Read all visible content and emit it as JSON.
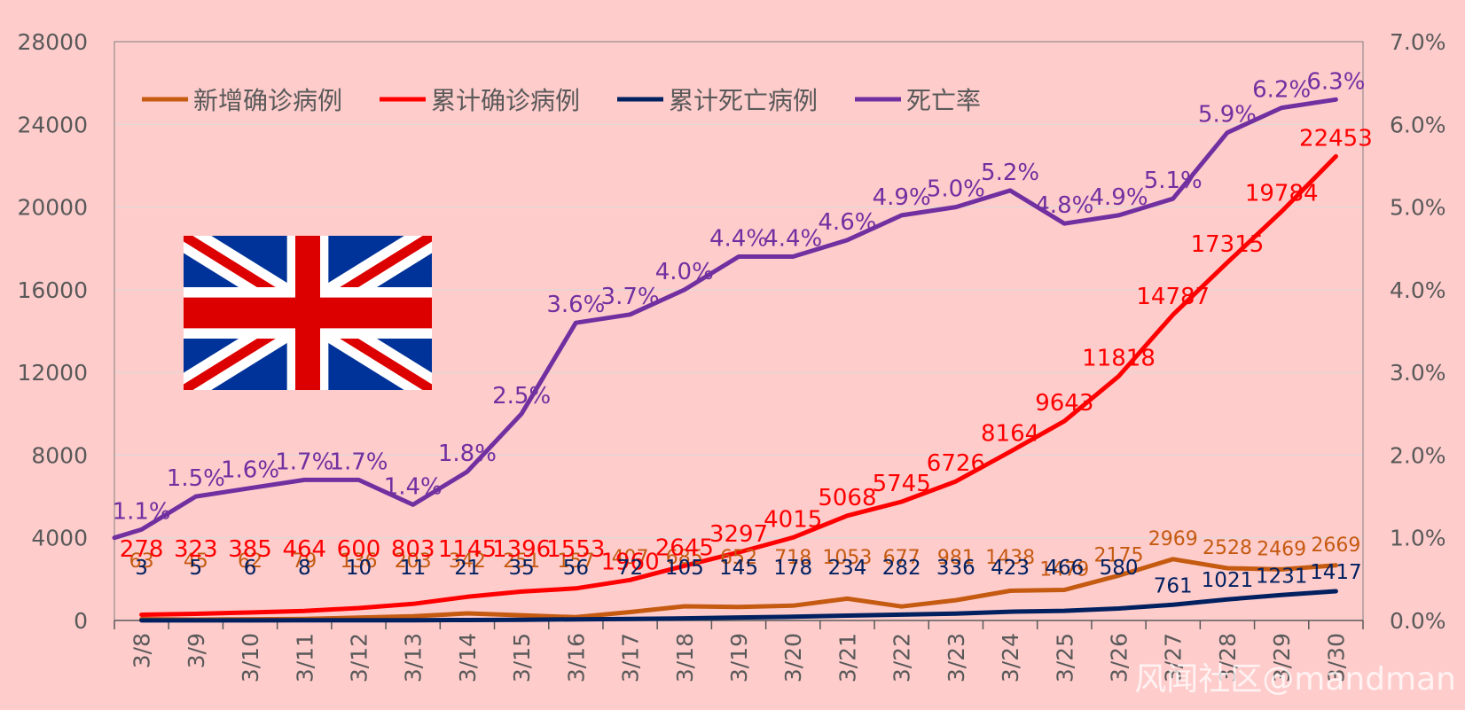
{
  "watermark": "风闻社区@mandman",
  "colors": {
    "background": "#ffcccc",
    "new_cases": "#c55a11",
    "cum_cases": "#ff0000",
    "cum_deaths": "#002060",
    "death_rate": "#7030a0",
    "axis_text": "#595959",
    "grid": "#d9d9d9"
  },
  "chart_data": {
    "type": "line",
    "title": "",
    "xlabel": "",
    "ylabel": "",
    "categories": [
      "3/8",
      "3/9",
      "3/10",
      "3/11",
      "3/12",
      "3/13",
      "3/14",
      "3/15",
      "3/16",
      "3/17",
      "3/18",
      "3/19",
      "3/20",
      "3/21",
      "3/22",
      "3/23",
      "3/24",
      "3/25",
      "3/26",
      "3/27",
      "3/28",
      "3/29",
      "3/30"
    ],
    "y_ticks": [
      "0",
      "4000",
      "8000",
      "12000",
      "16000",
      "20000",
      "24000",
      "28000"
    ],
    "y_ticks_right": [
      "0.0%",
      "1.0%",
      "2.0%",
      "3.0%",
      "4.0%",
      "5.0%",
      "6.0%",
      "7.0%"
    ],
    "ylim": [
      0,
      28000
    ],
    "ylim_right": [
      0,
      0.07
    ],
    "legend_position": "top-left inside plot",
    "grid": true,
    "series": [
      {
        "name": "新增确诊病例",
        "axis": "left",
        "color": "#c55a11",
        "values": [
          63,
          45,
          62,
          79,
          136,
          203,
          342,
          251,
          157,
          407,
          685,
          652,
          718,
          1053,
          677,
          981,
          1438,
          1479,
          2175,
          2969,
          2528,
          2469,
          2669
        ],
        "labels": [
          "63",
          "45",
          "62",
          "79",
          "136",
          "203",
          "342",
          "251",
          "157",
          "407",
          "685",
          "652",
          "718",
          "1053",
          "677",
          "981",
          "1438",
          "1479",
          "2175",
          "2969",
          "2528",
          "2469",
          "2669"
        ]
      },
      {
        "name": "累计确诊病例",
        "axis": "left",
        "color": "#ff0000",
        "values": [
          278,
          323,
          385,
          464,
          600,
          803,
          1145,
          1396,
          1553,
          1960,
          2645,
          3297,
          4015,
          5068,
          5745,
          6726,
          8164,
          9643,
          11818,
          14787,
          17315,
          19784,
          22453
        ],
        "labels": [
          "278",
          "323",
          "385",
          "464",
          "600",
          "803",
          "1145",
          "1396",
          "1553",
          "1960",
          "2645",
          "3297",
          "4015",
          "5068",
          "5745",
          "6726",
          "8164",
          "9643",
          "11818",
          "14787",
          "17315",
          "19784",
          "22453"
        ]
      },
      {
        "name": "累计死亡病例",
        "axis": "left",
        "color": "#002060",
        "values": [
          3,
          5,
          6,
          8,
          10,
          11,
          21,
          35,
          56,
          72,
          105,
          145,
          178,
          234,
          282,
          336,
          423,
          466,
          580,
          761,
          1021,
          1231,
          1417
        ],
        "labels": [
          "3",
          "5",
          "6",
          "8",
          "10",
          "11",
          "21",
          "35",
          "56",
          "72",
          "105",
          "145",
          "178",
          "234",
          "282",
          "336",
          "423",
          "466",
          "580",
          "761",
          "1021",
          "1231",
          "1417"
        ]
      },
      {
        "name": "死亡率",
        "axis": "right",
        "color": "#7030a0",
        "values": [
          0.011,
          0.015,
          0.016,
          0.017,
          0.017,
          0.014,
          0.018,
          0.025,
          0.036,
          0.037,
          0.04,
          0.044,
          0.044,
          0.046,
          0.049,
          0.05,
          0.052,
          0.048,
          0.049,
          0.051,
          0.059,
          0.062,
          0.063
        ],
        "labels": [
          "1.1%",
          "1.5%",
          "1.6%",
          "1.7%",
          "1.7%",
          "1.4%",
          "1.8%",
          "2.5%",
          "3.6%",
          "3.7%",
          "4.0%",
          "4.4%",
          "4.4%",
          "4.6%",
          "4.9%",
          "5.0%",
          "5.2%",
          "4.8%",
          "4.9%",
          "5.1%",
          "5.9%",
          "6.2%",
          "6.3%"
        ]
      }
    ]
  }
}
